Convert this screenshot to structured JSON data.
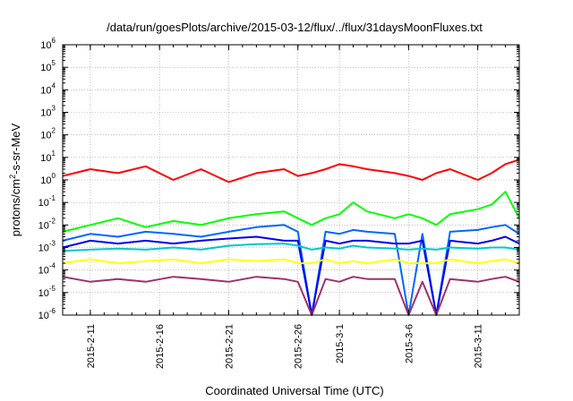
{
  "chart_data": {
    "type": "line",
    "title": "/data/run/goesPlots/archive/2015-03-12/flux/../flux/31daysMoonFluxes.txt",
    "xlabel": "Coordinated Universal Time (UTC)",
    "ylabel_parts": [
      "protons/cm",
      "2",
      "-s-sr-MeV"
    ],
    "yscale": "log",
    "ylim": [
      1e-06,
      1000000.0
    ],
    "xlim": [
      "2015-02-09",
      "2015-03-14"
    ],
    "grid": true,
    "legend": "none",
    "x_tick_labels": [
      "2015-2-11",
      "2015-2-16",
      "2015-2-21",
      "2015-2-26",
      "2015-3-1",
      "2015-3-6",
      "2015-3-11"
    ],
    "x_tick_dates": [
      "2015-02-11",
      "2015-02-16",
      "2015-02-21",
      "2015-02-26",
      "2015-03-01",
      "2015-03-06",
      "2015-03-11"
    ],
    "y_tick_exponents": [
      -6,
      -5,
      -4,
      -3,
      -2,
      -1,
      0,
      1,
      2,
      3,
      4,
      5,
      6
    ],
    "y_tick_base": "10",
    "x_days": [
      "2015-02-09",
      "2015-02-11",
      "2015-02-13",
      "2015-02-15",
      "2015-02-17",
      "2015-02-19",
      "2015-02-21",
      "2015-02-23",
      "2015-02-25",
      "2015-02-26",
      "2015-02-27",
      "2015-02-28",
      "2015-03-01",
      "2015-03-02",
      "2015-03-03",
      "2015-03-05",
      "2015-03-06",
      "2015-03-07",
      "2015-03-08",
      "2015-03-09",
      "2015-03-11",
      "2015-03-12",
      "2015-03-13",
      "2015-03-14"
    ],
    "series": [
      {
        "color": "#ff0000",
        "values": [
          1.5,
          3,
          2,
          4,
          1,
          3,
          0.8,
          2,
          3,
          1.5,
          2,
          3,
          5,
          4,
          3,
          2,
          1.5,
          1,
          2,
          3,
          1,
          2,
          5,
          8
        ]
      },
      {
        "color": "#00ff00",
        "values": [
          0.005,
          0.01,
          0.02,
          0.008,
          0.015,
          0.01,
          0.02,
          0.03,
          0.04,
          0.02,
          0.01,
          0.02,
          0.03,
          0.1,
          0.04,
          0.02,
          0.03,
          0.02,
          0.01,
          0.03,
          0.05,
          0.08,
          0.3,
          0.02
        ]
      },
      {
        "color": "#0066ff",
        "values": [
          0.002,
          0.004,
          0.003,
          0.005,
          0.004,
          0.003,
          0.005,
          0.008,
          0.01,
          0.005,
          1e-06,
          0.005,
          0.004,
          0.006,
          0.005,
          0.004,
          1e-06,
          0.004,
          1e-06,
          0.005,
          0.006,
          0.008,
          0.01,
          0.004
        ]
      },
      {
        "color": "#0000ee",
        "values": [
          0.001,
          0.002,
          0.0015,
          0.002,
          0.0015,
          0.002,
          0.0025,
          0.003,
          0.002,
          0.002,
          1e-06,
          0.002,
          0.0015,
          0.002,
          0.002,
          0.0015,
          0.0015,
          0.002,
          1e-06,
          0.002,
          0.0015,
          0.002,
          0.003,
          0.0015
        ]
      },
      {
        "color": "#00c8c8",
        "values": [
          0.0007,
          0.0008,
          0.0009,
          0.0008,
          0.001,
          0.0008,
          0.0012,
          0.0014,
          0.0015,
          0.0012,
          0.0008,
          0.001,
          0.0009,
          0.0012,
          0.001,
          0.0009,
          0.0008,
          0.0009,
          0.0008,
          0.001,
          0.0009,
          0.001,
          0.001,
          0.0008
        ]
      },
      {
        "color": "#ffff00",
        "values": [
          0.0002,
          0.0003,
          0.0002,
          0.00025,
          0.0003,
          0.0002,
          0.0003,
          0.00025,
          0.0003,
          0.0002,
          0.0002,
          0.0003,
          0.0002,
          0.00025,
          0.0002,
          0.0003,
          0.0002,
          0.0002,
          0.0002,
          0.0003,
          0.0002,
          0.00025,
          0.0003,
          0.0002
        ]
      },
      {
        "color": "#a0306a",
        "values": [
          5e-05,
          3e-05,
          4e-05,
          3e-05,
          5e-05,
          4e-05,
          3e-05,
          5e-05,
          4e-05,
          3e-05,
          1e-06,
          4e-05,
          3e-05,
          5e-05,
          4e-05,
          4e-05,
          1e-06,
          3e-05,
          1e-06,
          4e-05,
          3e-05,
          4e-05,
          5e-05,
          3e-05
        ]
      }
    ]
  }
}
